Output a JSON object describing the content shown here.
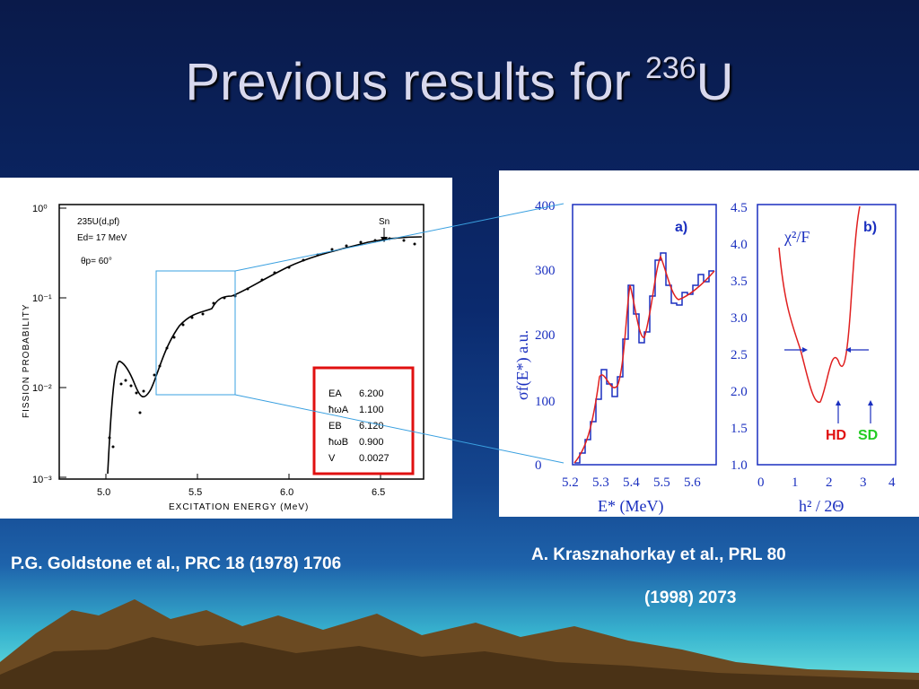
{
  "slide": {
    "title_main": "Previous results for ",
    "title_sup": "236",
    "title_end": "U"
  },
  "left_figure": {
    "header_line1": "235U(d,pf)",
    "header_line2": "Ed= 17 MeV",
    "header_line3": "θp= 60°",
    "sn_label": "Sn",
    "ylabel": "FISSION  PROBABILITY",
    "xlabel": "EXCITATION  ENERGY (MeV)",
    "y_ticks": [
      "10⁰",
      "10⁻¹",
      "10⁻²",
      "10⁻³"
    ],
    "x_ticks": [
      "5.0",
      "5.5",
      "6.0",
      "6.5"
    ],
    "param_table": [
      {
        "name": "EA",
        "value": "6.200"
      },
      {
        "name": "ħωA",
        "value": "1.100"
      },
      {
        "name": "EB",
        "value": "6.120"
      },
      {
        "name": "ħωB",
        "value": "0.900"
      },
      {
        "name": "V",
        "value": "0.0027"
      }
    ]
  },
  "right_figure_a": {
    "panel_label": "a)",
    "ylabel": "σf(E*) a.u.",
    "xlabel": "E* (MeV)",
    "y_ticks": [
      "0",
      "100",
      "200",
      "300",
      "400"
    ],
    "x_ticks": [
      "5.2",
      "5.3",
      "5.4",
      "5.5",
      "5.6"
    ]
  },
  "right_figure_b": {
    "panel_label": "b)",
    "curve_label": "χ²/F",
    "xlabel": "h² / 2Θ",
    "y_ticks": [
      "1.0",
      "1.5",
      "2.0",
      "2.5",
      "3.0",
      "3.5",
      "4.0",
      "4.5"
    ],
    "x_ticks": [
      "0",
      "1",
      "2",
      "3",
      "4"
    ],
    "hd_label": "HD",
    "sd_label": "SD"
  },
  "captions": {
    "left": "P.G. Goldstone et al., PRC 18 (1978) 1706",
    "right_line1": "A.  Krasznahorkay et al., PRL 80",
    "right_line2": "(1998) 2073"
  },
  "colors": {
    "title": "#d9d9ee",
    "highlight_box": "#e01010",
    "axis_blue": "#1a2fbf",
    "curve_red": "#e02020",
    "hd": "#e01010",
    "sd": "#22cc22"
  }
}
